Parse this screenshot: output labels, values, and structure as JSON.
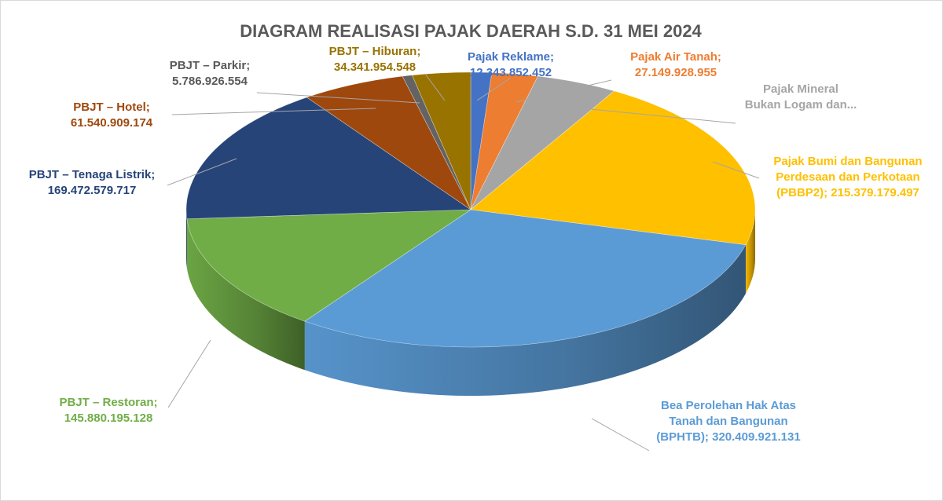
{
  "chart_data": {
    "type": "pie",
    "title": "DIAGRAM REALISASI PAJAK DAERAH S.D. 31 MEI 2024",
    "slices": [
      {
        "name": "Pajak Reklame",
        "label_lines": [
          "Pajak Reklame;",
          "12.343.852.452"
        ],
        "value": 12343852452,
        "value_label": "12.343.852.452",
        "color": "#4472c4",
        "label_color": "#4472c4"
      },
      {
        "name": "Pajak Air Tanah",
        "label_lines": [
          "Pajak Air Tanah;",
          "27.149.928.955"
        ],
        "value": 27149928955,
        "value_label": "27.149.928.955",
        "color": "#ed7d31",
        "label_color": "#ed7d31"
      },
      {
        "name": "Pajak Mineral Bukan Logam dan...",
        "label_lines": [
          "Pajak Mineral",
          "Bukan Logam dan..."
        ],
        "value": 48000000000,
        "value_label": "",
        "color": "#a5a5a5",
        "label_color": "#a5a5a5"
      },
      {
        "name": "Pajak Bumi dan Bangunan Perdesaan dan Perkotaan (PBBP2)",
        "label_lines": [
          "Pajak Bumi dan Bangunan",
          "Perdesaan dan Perkotaan",
          "(PBBP2); 215.379.179.497"
        ],
        "value": 215379179497,
        "value_label": "215.379.179.497",
        "color": "#ffc000",
        "label_color": "#ffc000"
      },
      {
        "name": "Bea Perolehan Hak Atas Tanah dan Bangunan (BPHTB)",
        "label_lines": [
          "Bea Perolehan Hak Atas",
          "Tanah dan Bangunan",
          "(BPHTB); 320.409.921.131"
        ],
        "value": 320409921131,
        "value_label": "320.409.921.131",
        "color": "#5b9bd5",
        "label_color": "#5b9bd5"
      },
      {
        "name": "PBJT – Restoran",
        "label_lines": [
          "PBJT – Restoran;",
          "145.880.195.128"
        ],
        "value": 145880195128,
        "value_label": "145.880.195.128",
        "color": "#70ad47",
        "label_color": "#70ad47"
      },
      {
        "name": "PBJT – Tenaga Listrik",
        "label_lines": [
          "PBJT – Tenaga Listrik;",
          "169.472.579.717"
        ],
        "value": 169472579717,
        "value_label": "169.472.579.717",
        "color": "#264478",
        "label_color": "#264478"
      },
      {
        "name": "PBJT – Hotel",
        "label_lines": [
          "PBJT – Hotel;",
          "61.540.909.174"
        ],
        "value": 61540909174,
        "value_label": "61.540.909.174",
        "color": "#9e480e",
        "label_color": "#9e480e"
      },
      {
        "name": "PBJT – Parkir",
        "label_lines": [
          "PBJT – Parkir;",
          "5.786.926.554"
        ],
        "value": 5786926554,
        "value_label": "5.786.926.554",
        "color": "#636363",
        "label_color": "#595959"
      },
      {
        "name": "PBJT – Hiburan",
        "label_lines": [
          "PBJT – Hiburan;",
          "34.341.954.548"
        ],
        "value": 34341954548,
        "value_label": "34.341.954.548",
        "color": "#997300",
        "label_color": "#997300"
      }
    ],
    "start": "12 o'clock",
    "direction": "clockwise",
    "style": "3D tilted pie",
    "legend": "none"
  }
}
